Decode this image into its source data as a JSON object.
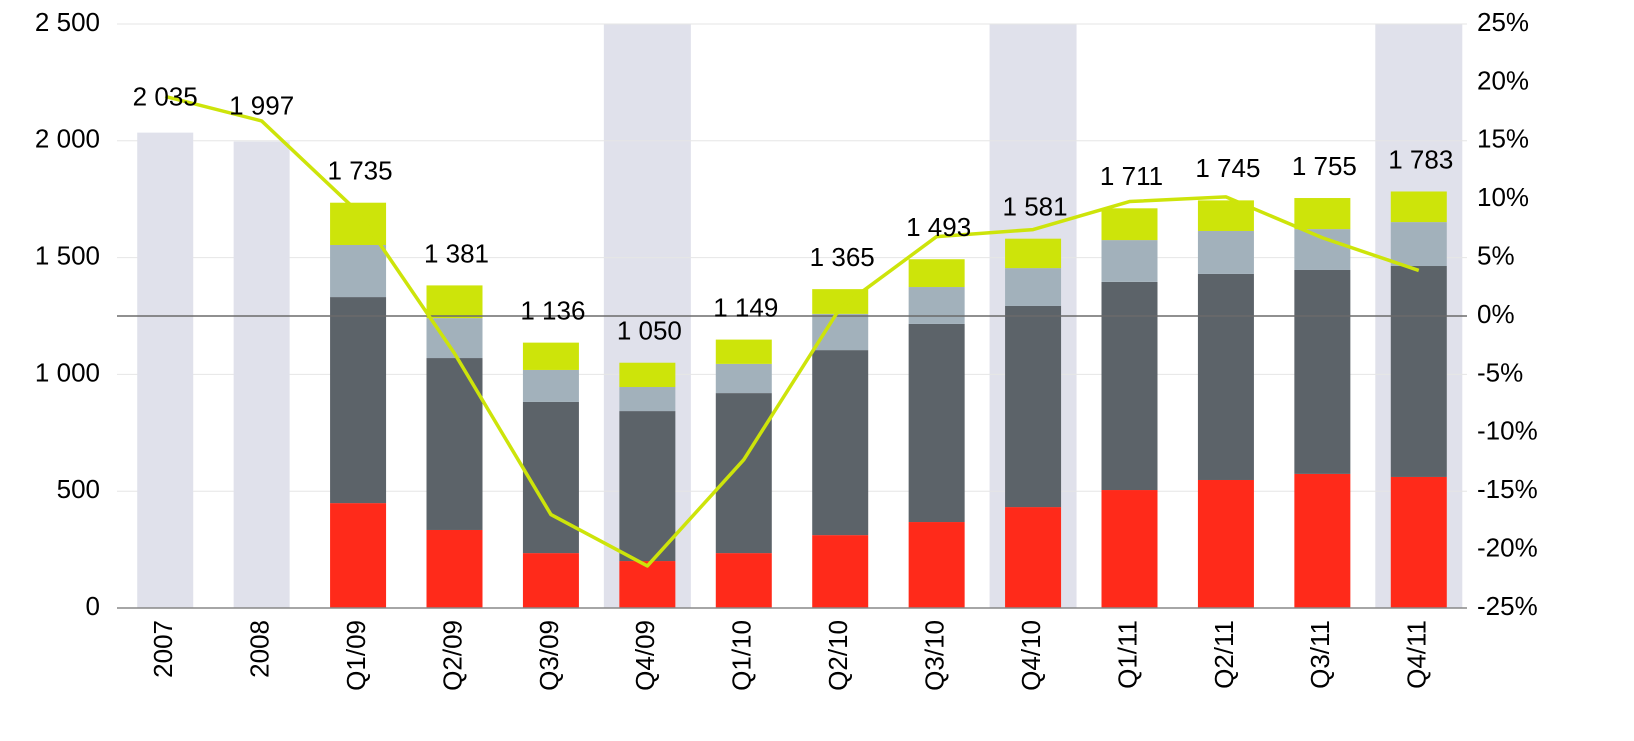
{
  "chart_data": {
    "type": "bar",
    "categories": [
      "2007",
      "2008",
      "Q1/09",
      "Q2/09",
      "Q3/09",
      "Q4/09",
      "Q1/10",
      "Q2/10",
      "Q3/10",
      "Q4/10",
      "Q1/11",
      "Q2/11",
      "Q3/11",
      "Q4/11"
    ],
    "series": [
      {
        "color": "#ff2a1a",
        "values": [
          null,
          null,
          449,
          334,
          235,
          201,
          235,
          312,
          368,
          432,
          505,
          548,
          574,
          561
        ]
      },
      {
        "color": "#5c6369",
        "values": [
          null,
          null,
          882,
          736,
          647,
          642,
          685,
          792,
          848,
          861,
          891,
          882,
          873,
          903
        ]
      },
      {
        "color": "#a2b1bb",
        "values": [
          null,
          null,
          223,
          171,
          137,
          103,
          125,
          155,
          158,
          162,
          179,
          184,
          175,
          188
        ]
      },
      {
        "color": "#cde40a",
        "values": [
          null,
          null,
          181,
          140,
          117,
          104,
          104,
          106,
          119,
          126,
          136,
          131,
          133,
          131
        ]
      },
      {
        "type": "line",
        "axis": "y2",
        "color": "#cde40a",
        "values": [
          18.8,
          16.7,
          8.9,
          -3.2,
          -17.0,
          -21.4,
          -12.3,
          0.7,
          6.8,
          7.4,
          9.8,
          10.2,
          6.7,
          3.9
        ]
      }
    ],
    "totals": {
      "color": "#e0e1eb",
      "values": [
        2035,
        1997,
        1735,
        1381,
        1136,
        1050,
        1149,
        1365,
        1493,
        1581,
        1711,
        1745,
        1755,
        1783
      ],
      "value_labels": [
        "2 035",
        "1 997",
        "1 735",
        "1 381",
        "1 136",
        "1 050",
        "1 149",
        "1 365",
        "1 493",
        "1 581",
        "1 711",
        "1 745",
        "1 755",
        "1 783"
      ]
    },
    "ylim": [
      0,
      2500
    ],
    "yticks": [
      0,
      500,
      {
        "value": 1000,
        "label": "1 000"
      },
      {
        "value": 1500,
        "label": "1 500"
      },
      {
        "value": 2000,
        "label": "2 000"
      },
      {
        "value": 2500,
        "label": "2 500"
      }
    ],
    "y2lim": [
      -25,
      25
    ],
    "y2ticks": [
      {
        "value": -25,
        "label": "-25%"
      },
      {
        "value": -20,
        "label": "-20%"
      },
      {
        "value": -15,
        "label": "-15%"
      },
      {
        "value": -10,
        "label": "-10%"
      },
      {
        "value": -5,
        "label": "-5%"
      },
      {
        "value": 0,
        "label": "0%"
      },
      {
        "value": 5,
        "label": "5%"
      },
      {
        "value": 10,
        "label": "10%"
      },
      {
        "value": 15,
        "label": "15%"
      },
      {
        "value": 20,
        "label": "20%"
      },
      {
        "value": 25,
        "label": "25%"
      }
    ],
    "grid": true
  }
}
